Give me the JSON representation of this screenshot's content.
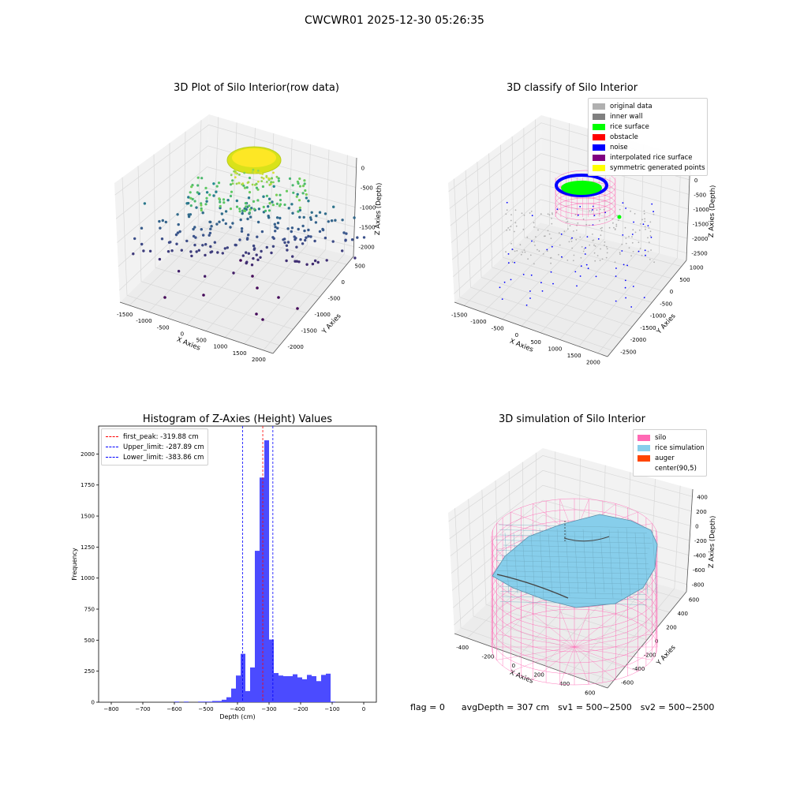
{
  "suptitle": "CWCWR01 2025-12-30 05:26:35",
  "footer": {
    "flag": "flag = 0",
    "avg": "avgDepth = 307 cm",
    "sv1": "sv1 = 500~2500",
    "sv2": "sv2 = 500~2500"
  },
  "chart_data": [
    {
      "type": "scatter",
      "subtype": "3d",
      "title": "3D Plot of Silo Interior(row data)",
      "xlabel": "X Axies",
      "ylabel": "Y Axies",
      "zlabel": "Z Axies (Depth)",
      "x_ticks": [
        "-1500",
        "-1000",
        "-500",
        "0",
        "500",
        "1000",
        "1500",
        "2000"
      ],
      "y_ticks": [
        "500",
        "0",
        "-500",
        "-1000",
        "-1500",
        "-2000"
      ],
      "z_ticks": [
        "0",
        "-500",
        "-1000",
        "-1500",
        "-2000"
      ],
      "colormap": "viridis",
      "description_points": [
        {
          "x": 0,
          "y": 0,
          "z": -200
        },
        {
          "x": -800,
          "y": -600,
          "z": -1200
        },
        {
          "x": 200,
          "y": -800,
          "z": -1800
        },
        {
          "x": 1500,
          "y": -1500,
          "z": -2300
        }
      ]
    },
    {
      "type": "scatter",
      "subtype": "3d",
      "title": "3D classify of Silo Interior",
      "xlabel": "X Axies",
      "ylabel": "Y Axies",
      "zlabel": "Z Axies (Depth)",
      "x_ticks": [
        "-1500",
        "-1000",
        "-500",
        "0",
        "500",
        "1000",
        "1500",
        "2000"
      ],
      "y_ticks": [
        "1000",
        "500",
        "0",
        "-500",
        "-1000",
        "-1500",
        "-2000",
        "-2500"
      ],
      "z_ticks": [
        "500",
        "0",
        "-500",
        "-1000",
        "-1500",
        "-2000",
        "-2500"
      ],
      "legend": [
        {
          "label": "original data",
          "color": "#b0b0b0"
        },
        {
          "label": "inner wall",
          "color": "#808080"
        },
        {
          "label": "rice surface",
          "color": "#00ff00"
        },
        {
          "label": "obstacle",
          "color": "#ff0000"
        },
        {
          "label": "noise",
          "color": "#0000ff"
        },
        {
          "label": "interpolated rice surface",
          "color": "#800080"
        },
        {
          "label": "symmetric generated points",
          "color": "#ffff00"
        }
      ]
    },
    {
      "type": "bar",
      "subtype": "histogram",
      "title": "Histogram of Z-Axies (Height) Values",
      "xlabel": "Depth (cm)",
      "ylabel": "Frequency",
      "xlim": [
        -840,
        40
      ],
      "ylim": [
        0,
        2225
      ],
      "x_ticks": [
        -800,
        -700,
        -600,
        -500,
        -400,
        -300,
        -200,
        -100,
        0
      ],
      "y_ticks": [
        0,
        250,
        500,
        750,
        1000,
        1250,
        1500,
        1750,
        2000
      ],
      "bar_color": "#4b4bff",
      "bin_width": 15,
      "bins": [
        [
          -600,
          5
        ],
        [
          -585,
          0
        ],
        [
          -570,
          5
        ],
        [
          -555,
          0
        ],
        [
          -540,
          0
        ],
        [
          -525,
          5
        ],
        [
          -510,
          5
        ],
        [
          -495,
          5
        ],
        [
          -480,
          10
        ],
        [
          -465,
          10
        ],
        [
          -450,
          20
        ],
        [
          -435,
          40
        ],
        [
          -420,
          110
        ],
        [
          -405,
          215
        ],
        [
          -390,
          390
        ],
        [
          -375,
          90
        ],
        [
          -360,
          280
        ],
        [
          -345,
          1220
        ],
        [
          -330,
          1810
        ],
        [
          -315,
          2110
        ],
        [
          -300,
          505
        ],
        [
          -285,
          235
        ],
        [
          -270,
          215
        ],
        [
          -255,
          210
        ],
        [
          -240,
          210
        ],
        [
          -225,
          225
        ],
        [
          -210,
          200
        ],
        [
          -195,
          185
        ],
        [
          -180,
          220
        ],
        [
          -165,
          210
        ],
        [
          -150,
          170
        ],
        [
          -135,
          220
        ],
        [
          -120,
          230
        ],
        [
          -105,
          5
        ]
      ],
      "vlines": [
        {
          "label": "first_peak: -319.88 cm",
          "x": -319.88,
          "color": "#ff0000"
        },
        {
          "label": "Upper_limit: -287.89 cm",
          "x": -287.89,
          "color": "#0000ff"
        },
        {
          "label": "Lower_limit: -383.86 cm",
          "x": -383.86,
          "color": "#0000ff"
        }
      ]
    },
    {
      "type": "surface",
      "subtype": "3d",
      "title": "3D simulation of Silo Interior",
      "xlabel": "X Axies",
      "ylabel": "Y Axies",
      "zlabel": "Z Axies (Depth)",
      "x_ticks": [
        "-400",
        "-200",
        "0",
        "200",
        "400",
        "600"
      ],
      "y_ticks": [
        "600",
        "400",
        "200",
        "0",
        "-200",
        "-400",
        "-600"
      ],
      "z_ticks": [
        "400",
        "200",
        "0",
        "-200",
        "-400",
        "-600",
        "-800"
      ],
      "legend": [
        {
          "label": "silo",
          "color": "#ff69b4"
        },
        {
          "label": "rice simulation",
          "color": "#87ceeb"
        },
        {
          "label": "auger",
          "color": "#ff4500"
        },
        {
          "label": "center(90,5)",
          "color": ""
        }
      ]
    }
  ]
}
